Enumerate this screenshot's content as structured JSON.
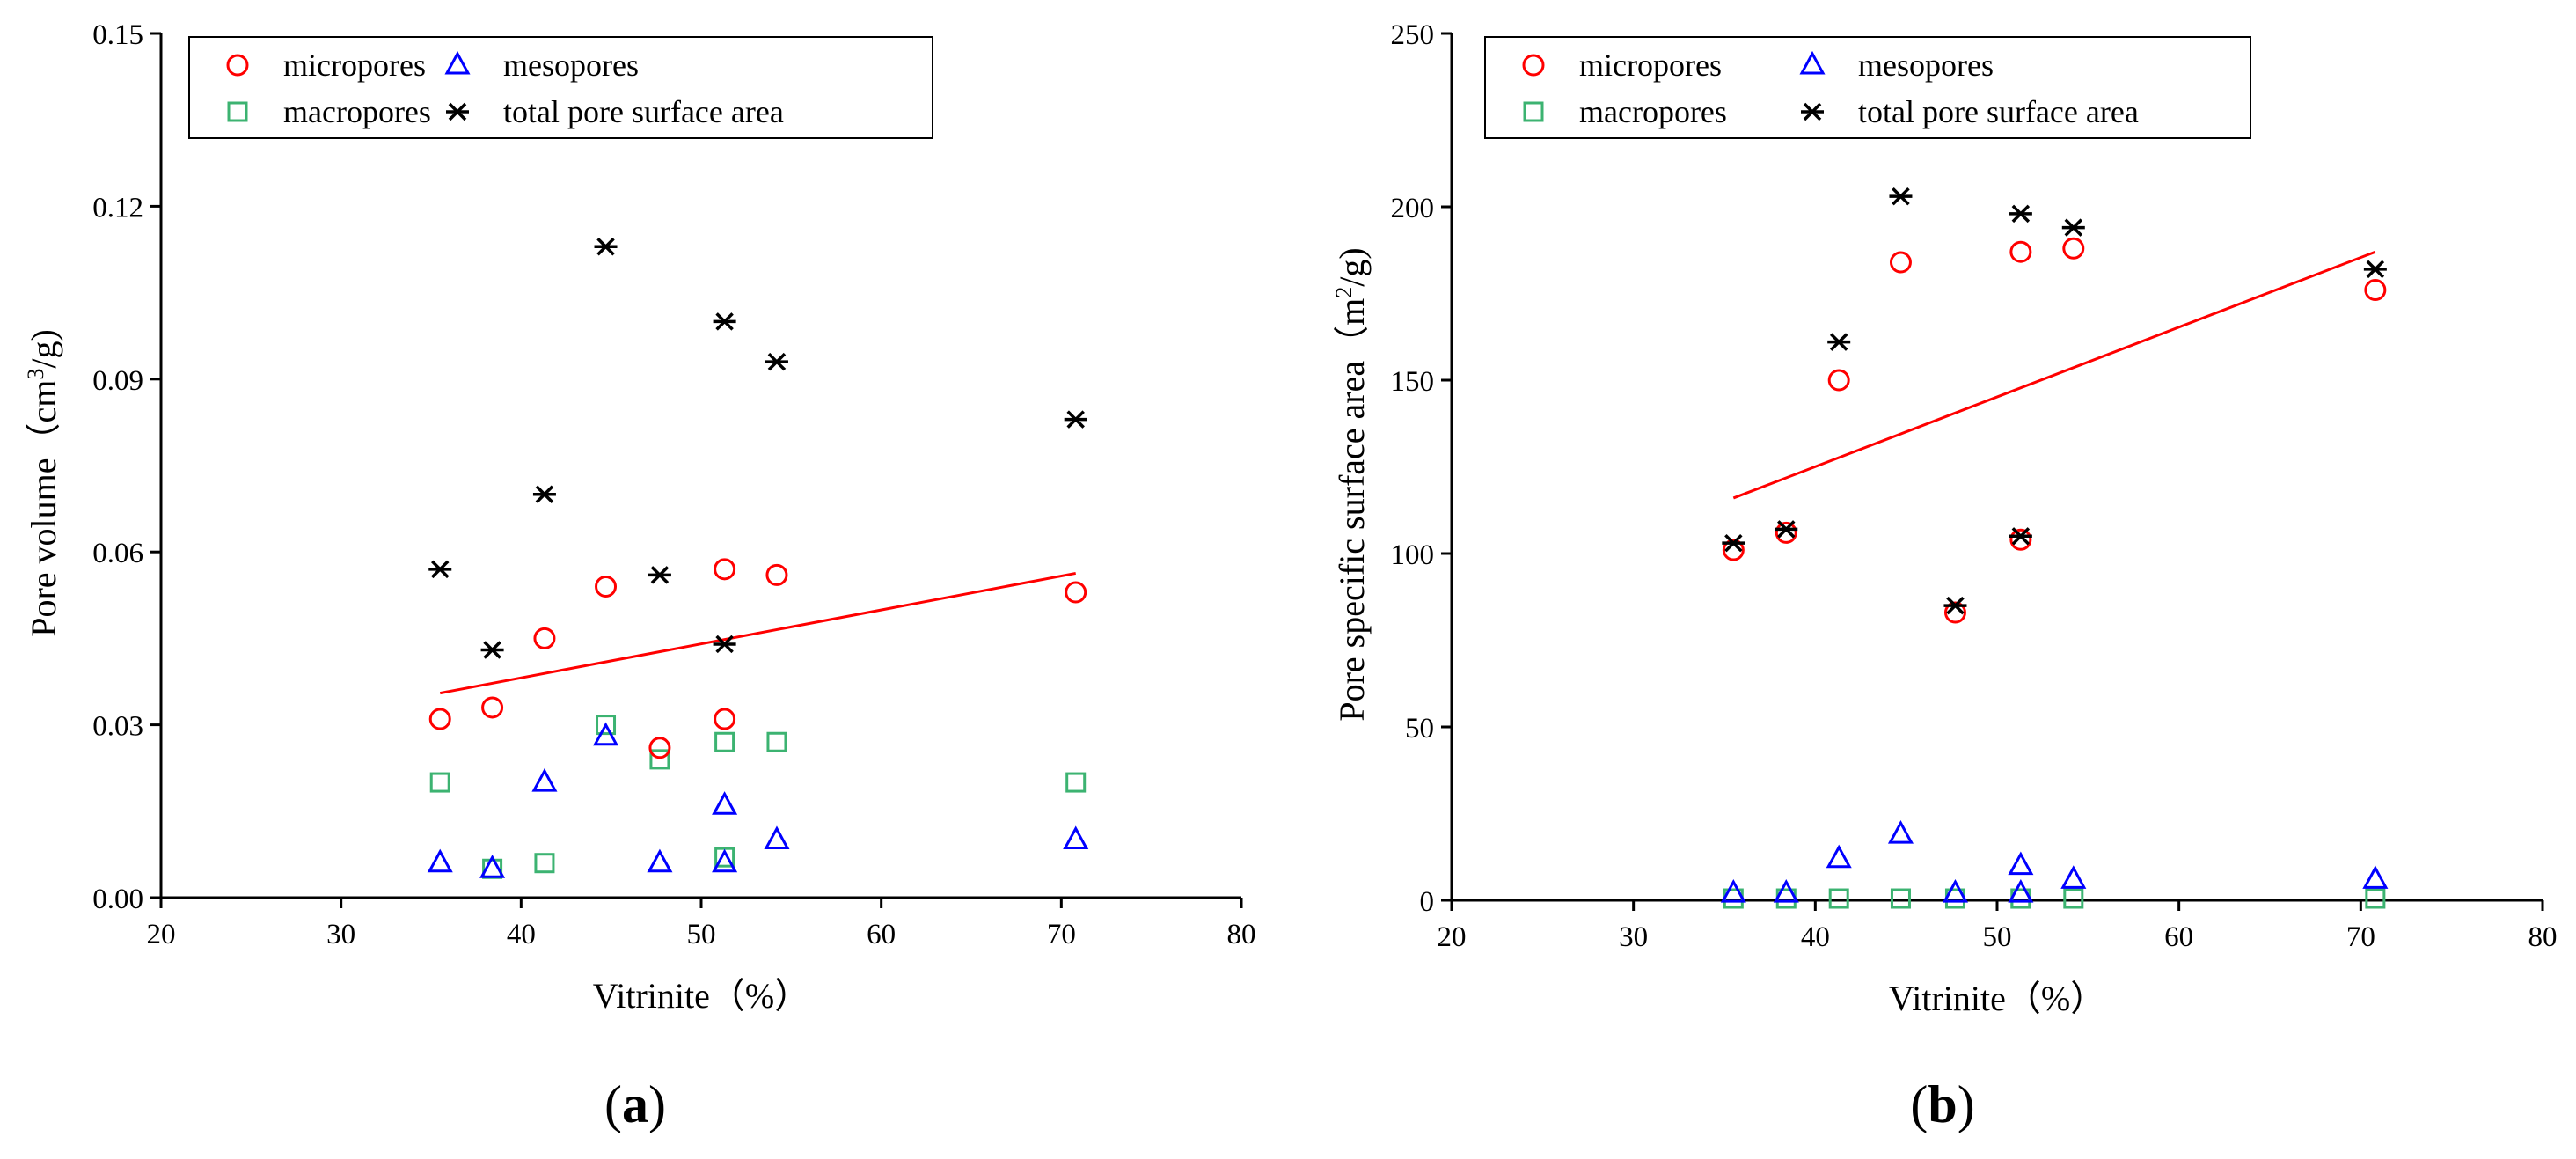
{
  "figure": {
    "caption_a": {
      "open": "(",
      "letter": "a",
      "close": ")"
    },
    "caption_b": {
      "open": "(",
      "letter": "b",
      "close": ")"
    }
  },
  "chart_data": [
    {
      "type": "scatter",
      "panel": "a",
      "title": "",
      "xlabel": "Vitrinite（%）",
      "ylabel": {
        "main": "Pore volume（cm",
        "sup": "3",
        "tail": "/g)"
      },
      "xlim": [
        20,
        80
      ],
      "ylim": [
        0,
        0.15
      ],
      "xticks": [
        20,
        30,
        40,
        50,
        60,
        70,
        80
      ],
      "yticks": [
        0,
        0.03,
        0.06,
        0.09,
        0.12,
        0.15
      ],
      "ytick_labels": [
        "0.00",
        "0.03",
        "0.06",
        "0.09",
        "0.12",
        "0.15"
      ],
      "x": [
        35.5,
        38.4,
        41.3,
        44.7,
        47.7,
        51.3,
        51.3,
        54.2,
        70.8
      ],
      "series": [
        {
          "name": "micropores",
          "marker": "circle",
          "color": "#ff0000",
          "values": [
            0.031,
            0.033,
            0.045,
            0.054,
            0.026,
            0.031,
            0.057,
            0.056,
            0.053
          ]
        },
        {
          "name": "mesopores",
          "marker": "triangle",
          "color": "#0000ff",
          "values": [
            0.006,
            0.005,
            0.02,
            0.028,
            0.006,
            0.006,
            0.016,
            0.01,
            0.01
          ]
        },
        {
          "name": "macropores",
          "marker": "square",
          "color": "#3cb371",
          "values": [
            0.02,
            0.005,
            0.006,
            0.03,
            0.024,
            0.007,
            0.027,
            0.027,
            0.02
          ]
        },
        {
          "name": "total pore surface area",
          "marker": "asterisk",
          "color": "#000000",
          "values": [
            0.057,
            0.043,
            0.07,
            0.113,
            0.056,
            0.044,
            0.1,
            0.093,
            0.083
          ]
        }
      ],
      "trendline": {
        "color": "#ff0000",
        "x": [
          35.5,
          70.8
        ],
        "y": [
          0.0355,
          0.0563
        ]
      },
      "legend_location": "top-left"
    },
    {
      "type": "scatter",
      "panel": "b",
      "title": "",
      "xlabel": "Vitrinite（%）",
      "ylabel": {
        "main": "Pore specific surface area（m",
        "sup": "2",
        "tail": "/g)"
      },
      "xlim": [
        20,
        80
      ],
      "ylim": [
        0,
        250
      ],
      "xticks": [
        20,
        30,
        40,
        50,
        60,
        70,
        80
      ],
      "yticks": [
        0,
        50,
        100,
        150,
        200,
        250
      ],
      "ytick_labels": [
        "0",
        "50",
        "100",
        "150",
        "200",
        "250"
      ],
      "x": [
        35.5,
        38.4,
        41.3,
        44.7,
        47.7,
        51.3,
        51.3,
        54.2,
        70.8
      ],
      "series": [
        {
          "name": "micropores",
          "marker": "circle",
          "color": "#ff0000",
          "values": [
            101,
            106,
            150,
            184,
            83,
            104,
            187,
            188,
            176
          ]
        },
        {
          "name": "mesopores",
          "marker": "triangle",
          "color": "#0000ff",
          "values": [
            2,
            2,
            12,
            19,
            2,
            2,
            10,
            6,
            6
          ]
        },
        {
          "name": "macropores",
          "marker": "square",
          "color": "#3cb371",
          "values": [
            0.5,
            0.5,
            0.5,
            0.5,
            0.5,
            0.5,
            0.5,
            0.5,
            0.5
          ]
        },
        {
          "name": "total pore surface area",
          "marker": "asterisk",
          "color": "#000000",
          "values": [
            103,
            107,
            161,
            203,
            85,
            105,
            198,
            194,
            182
          ]
        }
      ],
      "trendline": {
        "color": "#ff0000",
        "x": [
          35.5,
          70.8
        ],
        "y": [
          116,
          187
        ]
      },
      "legend_location": "top-left"
    }
  ]
}
